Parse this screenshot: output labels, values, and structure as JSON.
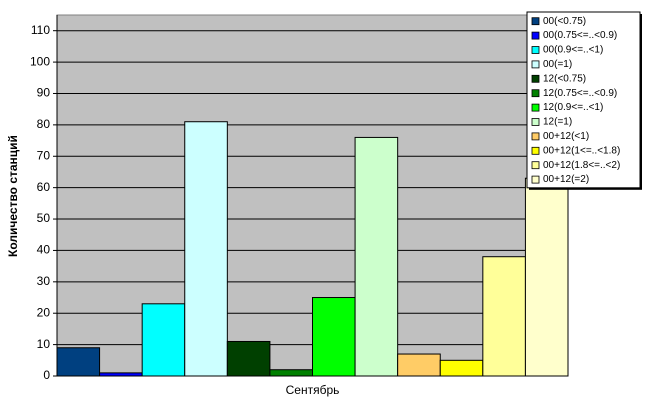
{
  "chart_data": {
    "type": "bar",
    "y_label": "Количество станций",
    "categories": [
      "Сентябрь"
    ],
    "series": [
      {
        "name": "00(<0.75)",
        "color": "#004080",
        "values": [
          9
        ]
      },
      {
        "name": "00(0.75<=..<0.9)",
        "color": "#0000ff",
        "values": [
          1
        ]
      },
      {
        "name": "00(0.9<=..<1)",
        "color": "#00ffff",
        "values": [
          23
        ]
      },
      {
        "name": "00(=1)",
        "color": "#ccffff",
        "values": [
          81
        ]
      },
      {
        "name": "12(<0.75)",
        "color": "#004000",
        "values": [
          11
        ]
      },
      {
        "name": "12(0.75<=..<0.9)",
        "color": "#008000",
        "values": [
          2
        ]
      },
      {
        "name": "12(0.9<=..<1)",
        "color": "#00ff00",
        "values": [
          25
        ]
      },
      {
        "name": "12(=1)",
        "color": "#ccffcc",
        "values": [
          76
        ]
      },
      {
        "name": "00+12(<1)",
        "color": "#ffcc66",
        "values": [
          7
        ]
      },
      {
        "name": "00+12(1<=..<1.8)",
        "color": "#ffff00",
        "values": [
          5
        ]
      },
      {
        "name": "00+12(1.8<=..<2)",
        "color": "#ffff99",
        "values": [
          38
        ]
      },
      {
        "name": "00+12(=2)",
        "color": "#ffffcc",
        "values": [
          63
        ]
      }
    ],
    "ylim": [
      0,
      115
    ],
    "yticks": [
      0,
      10,
      20,
      30,
      40,
      50,
      60,
      70,
      80,
      90,
      100,
      110
    ],
    "legend": "top-right"
  }
}
